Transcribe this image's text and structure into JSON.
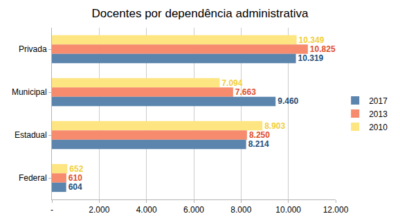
{
  "chart_data": {
    "type": "bar",
    "orientation": "horizontal",
    "title": "Docentes por dependência administrativa",
    "categories": [
      "Privada",
      "Municipal",
      "Estadual",
      "Federal"
    ],
    "series": [
      {
        "name": "2017",
        "color": "#5b85ad",
        "values": [
          10319,
          9460,
          8214,
          604
        ],
        "value_labels": [
          "10.319",
          "9.460",
          "8.214",
          "604"
        ]
      },
      {
        "name": "2013",
        "color": "#f68b6e",
        "values": [
          10825,
          7663,
          8250,
          610
        ],
        "value_labels": [
          "10.825",
          "7.663",
          "8.250",
          "610"
        ]
      },
      {
        "name": "2010",
        "color": "#fde582",
        "values": [
          10349,
          7094,
          8903,
          652
        ],
        "value_labels": [
          "10.349",
          "7.094",
          "8.903",
          "652"
        ]
      }
    ],
    "xlim": [
      0,
      12000
    ],
    "xticks": [
      {
        "value": 0,
        "label": "-"
      },
      {
        "value": 2000,
        "label": "2.000"
      },
      {
        "value": 4000,
        "label": "4.000"
      },
      {
        "value": 6000,
        "label": "6.000"
      },
      {
        "value": 8000,
        "label": "8.000"
      },
      {
        "value": 10000,
        "label": "10.000"
      },
      {
        "value": 12000,
        "label": "12.000"
      }
    ],
    "grid": true,
    "legend": "right",
    "data_labels": true
  }
}
